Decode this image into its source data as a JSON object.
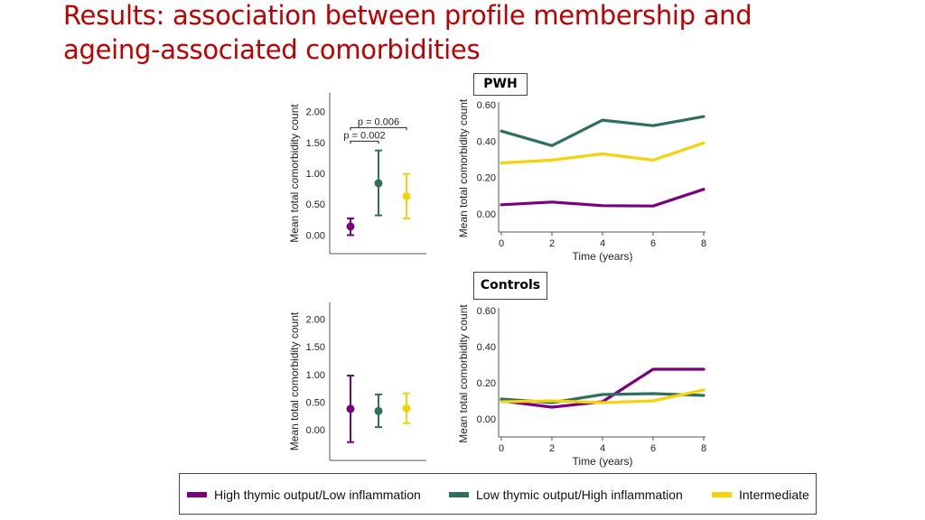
{
  "page": {
    "title_line1": "Results: association between profile membership and",
    "title_line2": "ageing-associated comorbidities"
  },
  "colors": {
    "high_thymic": "#7b007f",
    "low_thymic": "#2e6f5e",
    "intermediate": "#f5d30c",
    "title": "#c00000"
  },
  "legend": {
    "items": [
      {
        "label": "High thymic output/Low inflammation",
        "color": "#7b007f"
      },
      {
        "label": "Low thymic output/High inflammation",
        "color": "#2e6f5e"
      },
      {
        "label": "Intermediate",
        "color": "#f5d30c"
      }
    ]
  },
  "chart_data": [
    {
      "id": "pwh-means",
      "type": "scatter",
      "title": "",
      "ylabel": "Mean total comorbidity count",
      "ylim": [
        -0.3,
        2.3
      ],
      "yticks": [
        "0.00",
        "0.50",
        "1.00",
        "1.50",
        "2.00"
      ],
      "ytick_values": [
        0,
        0.5,
        1,
        1.5,
        2
      ],
      "points": [
        {
          "name": "High thymic output/Low inflammation",
          "mean": 0.14,
          "low": 0.0,
          "high": 0.27,
          "color": "#7b007f"
        },
        {
          "name": "Low thymic output/High inflammation",
          "mean": 0.84,
          "low": 0.32,
          "high": 1.37,
          "color": "#2e6f5e"
        },
        {
          "name": "Intermediate",
          "mean": 0.63,
          "low": 0.27,
          "high": 0.99,
          "color": "#f5d30c"
        }
      ],
      "annotations": [
        {
          "text": "p = 0.006",
          "from": 0,
          "to": 2,
          "y": 1.74
        },
        {
          "text": "p = 0.002",
          "from": 0,
          "to": 1,
          "y": 1.52
        }
      ]
    },
    {
      "id": "controls-means",
      "type": "scatter",
      "title": "",
      "ylabel": "Mean total comorbidity count",
      "ylim": [
        -0.55,
        2.3
      ],
      "yticks": [
        "0.00",
        "0.50",
        "1.00",
        "1.50",
        "2.00"
      ],
      "ytick_values": [
        0,
        0.5,
        1,
        1.5,
        2
      ],
      "points": [
        {
          "name": "High thymic output/Low inflammation",
          "mean": 0.38,
          "low": -0.22,
          "high": 0.98,
          "color": "#7b007f"
        },
        {
          "name": "Low thymic output/High inflammation",
          "mean": 0.34,
          "low": 0.05,
          "high": 0.64,
          "color": "#2e6f5e"
        },
        {
          "name": "Intermediate",
          "mean": 0.39,
          "low": 0.12,
          "high": 0.66,
          "color": "#f5d30c"
        }
      ],
      "annotations": []
    },
    {
      "id": "pwh-time",
      "type": "line",
      "title": "PWH",
      "xlabel": "Time (years)",
      "ylabel": "Mean total comorbidity count",
      "x": [
        0,
        2,
        4,
        6,
        8
      ],
      "xticks": [
        "0",
        "2",
        "4",
        "6",
        "8"
      ],
      "ylim": [
        -0.1,
        0.6
      ],
      "yticks": [
        "0.00",
        "0.20",
        "0.40",
        "0.60"
      ],
      "ytick_values": [
        0,
        0.2,
        0.4,
        0.6
      ],
      "series": [
        {
          "name": "High thymic output/Low inflammation",
          "color": "#7b007f",
          "values": [
            0.05,
            0.065,
            0.045,
            0.043,
            0.135
          ]
        },
        {
          "name": "Low thymic output/High inflammation",
          "color": "#2e6f5e",
          "values": [
            0.455,
            0.375,
            0.515,
            0.485,
            0.535
          ]
        },
        {
          "name": "Intermediate",
          "color": "#f5d30c",
          "values": [
            0.28,
            0.295,
            0.33,
            0.295,
            0.39
          ]
        }
      ]
    },
    {
      "id": "controls-time",
      "type": "line",
      "title": "Controls",
      "xlabel": "Time (years)",
      "ylabel": "Mean total comorbidity count",
      "x": [
        0,
        2,
        4,
        6,
        8
      ],
      "xticks": [
        "0",
        "2",
        "4",
        "6",
        "8"
      ],
      "ylim": [
        -0.1,
        0.6
      ],
      "yticks": [
        "0.00",
        "0.20",
        "0.40",
        "0.60"
      ],
      "ytick_values": [
        0,
        0.2,
        0.4,
        0.6
      ],
      "series": [
        {
          "name": "High thymic output/Low inflammation",
          "color": "#7b007f",
          "values": [
            0.1,
            0.065,
            0.095,
            0.275,
            0.275
          ]
        },
        {
          "name": "Low thymic output/High inflammation",
          "color": "#2e6f5e",
          "values": [
            0.11,
            0.09,
            0.135,
            0.14,
            0.13
          ]
        },
        {
          "name": "Intermediate",
          "color": "#f5d30c",
          "values": [
            0.095,
            0.1,
            0.09,
            0.1,
            0.16
          ]
        }
      ]
    }
  ]
}
